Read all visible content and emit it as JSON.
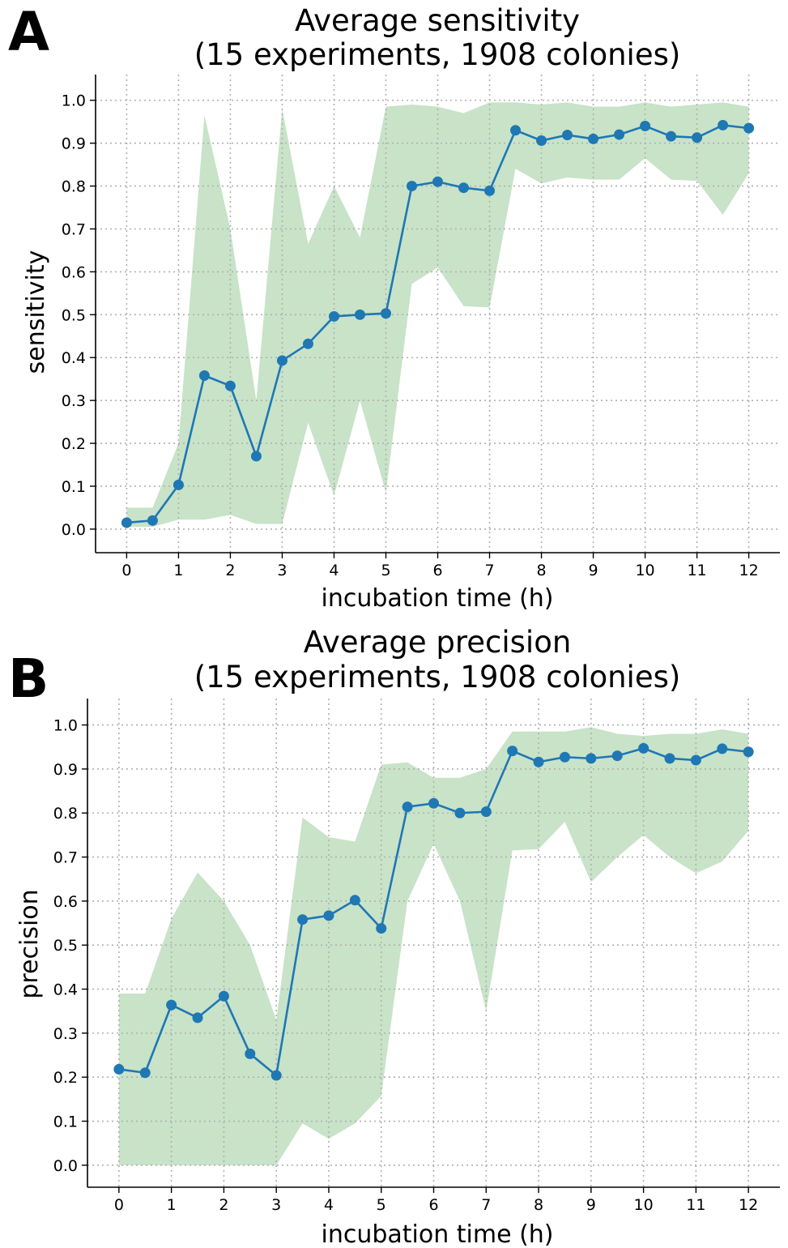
{
  "colors": {
    "line": "#1f77b4",
    "band": "#c8e3c8",
    "grid": "#b0b0b0"
  },
  "chart_data": [
    {
      "panel": "A",
      "type": "line",
      "title": "Average sensitivity",
      "subtitle": "(15 experiments, 1908 colonies)",
      "xlabel": "incubation time (h)",
      "ylabel": "sensitivity",
      "xlim": [
        -0.6,
        12.6
      ],
      "ylim": [
        -0.055,
        1.06
      ],
      "xticks": [
        0,
        1,
        2,
        3,
        4,
        5,
        6,
        7,
        8,
        9,
        10,
        11,
        12
      ],
      "xtick_labels": [
        "0",
        "1",
        "2",
        "3",
        "4",
        "5",
        "6",
        "7",
        "8",
        "9",
        "10",
        "11",
        "12"
      ],
      "yticks": [
        0.0,
        0.1,
        0.2,
        0.3,
        0.4,
        0.5,
        0.6,
        0.7,
        0.8,
        0.9,
        1.0
      ],
      "ytick_labels": [
        "0.0",
        "0.1",
        "0.2",
        "0.3",
        "0.4",
        "0.5",
        "0.6",
        "0.7",
        "0.8",
        "0.9",
        "1.0"
      ],
      "grid": true,
      "x": [
        0,
        0.5,
        1,
        1.5,
        2,
        2.5,
        3,
        3.5,
        4,
        4.5,
        5,
        5.5,
        6,
        6.5,
        7,
        7.5,
        8,
        8.5,
        9,
        9.5,
        10,
        10.5,
        11,
        11.5,
        12
      ],
      "series": [
        {
          "values": [
            0.015,
            0.02,
            0.103,
            0.358,
            0.334,
            0.17,
            0.393,
            0.432,
            0.496,
            0.5,
            0.503,
            0.8,
            0.81,
            0.796,
            0.789,
            0.93,
            0.906,
            0.919,
            0.91,
            0.92,
            0.94,
            0.916,
            0.913,
            0.942,
            0.935
          ],
          "band_upper": [
            0.05,
            0.05,
            0.2,
            0.965,
            0.7,
            0.3,
            0.98,
            0.665,
            0.8,
            0.68,
            0.985,
            0.99,
            0.985,
            0.97,
            0.995,
            0.995,
            0.99,
            0.995,
            0.985,
            0.985,
            0.995,
            0.985,
            0.99,
            0.995,
            0.985
          ],
          "band_lower": [
            0.005,
            0.005,
            0.022,
            0.022,
            0.033,
            0.012,
            0.012,
            0.248,
            0.078,
            0.3,
            0.085,
            0.572,
            0.61,
            0.52,
            0.517,
            0.84,
            0.806,
            0.82,
            0.815,
            0.815,
            0.865,
            0.815,
            0.812,
            0.733,
            0.83
          ]
        }
      ]
    },
    {
      "panel": "B",
      "type": "line",
      "title": "Average precision",
      "subtitle": "(15 experiments, 1908 colonies)",
      "xlabel": "incubation time (h)",
      "ylabel": "precision",
      "xlim": [
        -0.6,
        12.6
      ],
      "ylim": [
        -0.05,
        1.06
      ],
      "xticks": [
        0,
        1,
        2,
        3,
        4,
        5,
        6,
        7,
        8,
        9,
        10,
        11,
        12
      ],
      "xtick_labels": [
        "0",
        "1",
        "2",
        "3",
        "4",
        "5",
        "6",
        "7",
        "8",
        "9",
        "10",
        "11",
        "12"
      ],
      "yticks": [
        0.0,
        0.1,
        0.2,
        0.3,
        0.4,
        0.5,
        0.6,
        0.7,
        0.8,
        0.9,
        1.0
      ],
      "ytick_labels": [
        "0.0",
        "0.1",
        "0.2",
        "0.3",
        "0.4",
        "0.5",
        "0.6",
        "0.7",
        "0.8",
        "0.9",
        "1.0"
      ],
      "grid": true,
      "x": [
        0,
        0.5,
        1,
        1.5,
        2,
        2.5,
        3,
        3.5,
        4,
        4.5,
        5,
        5.5,
        6,
        6.5,
        7,
        7.5,
        8,
        8.5,
        9,
        9.5,
        10,
        10.5,
        11,
        11.5,
        12
      ],
      "series": [
        {
          "values": [
            0.218,
            0.21,
            0.364,
            0.335,
            0.384,
            0.253,
            0.204,
            0.558,
            0.567,
            0.602,
            0.538,
            0.814,
            0.822,
            0.8,
            0.803,
            0.941,
            0.916,
            0.927,
            0.924,
            0.93,
            0.947,
            0.924,
            0.92,
            0.946,
            0.939
          ],
          "band_upper": [
            0.39,
            0.39,
            0.56,
            0.665,
            0.6,
            0.5,
            0.33,
            0.79,
            0.745,
            0.735,
            0.91,
            0.915,
            0.88,
            0.88,
            0.9,
            0.985,
            0.985,
            0.985,
            0.995,
            0.98,
            0.975,
            0.98,
            0.98,
            0.99,
            0.98
          ],
          "band_lower": [
            0.0,
            0.0,
            0.0,
            0.0,
            0.0,
            0.0,
            0.0,
            0.095,
            0.06,
            0.095,
            0.157,
            0.6,
            0.73,
            0.6,
            0.35,
            0.715,
            0.718,
            0.78,
            0.643,
            0.7,
            0.75,
            0.7,
            0.663,
            0.69,
            0.76
          ]
        }
      ]
    }
  ]
}
